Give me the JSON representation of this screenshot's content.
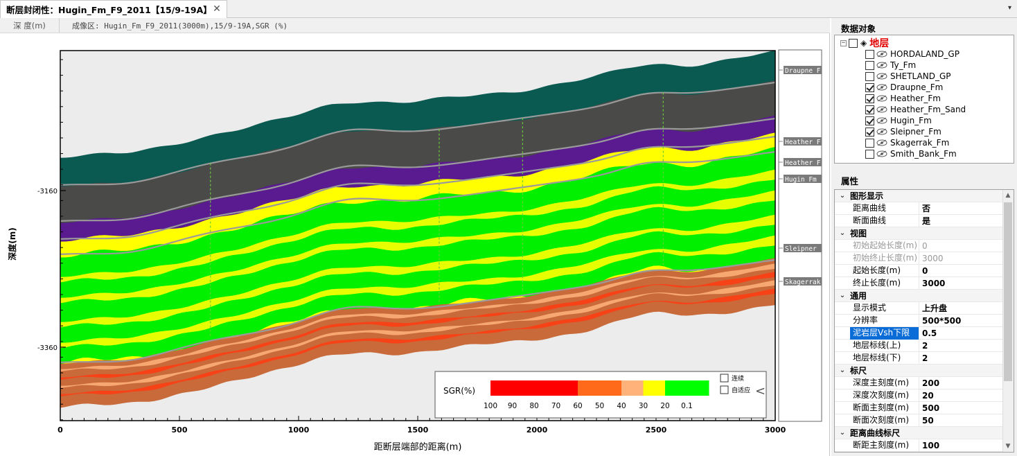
{
  "tab": {
    "title": "断层封闭性：Hugin_Fm_F9_2011【15/9-19A】",
    "close": "✕",
    "dropdown": "▾"
  },
  "chart": {
    "depth_col": "深 度(m)",
    "section_label": "成像区: Hugin_Fm_F9_2011(3000m),15/9-19A,SGR (%)",
    "ylabel": "深度(m)",
    "xlabel": "距断层端部的距离(m)",
    "x_ticks": [
      "0",
      "500",
      "1000",
      "1500",
      "2000",
      "2500",
      "3000"
    ],
    "y_ticks": [
      "-3160",
      "-3360"
    ],
    "horizon_labels": [
      "Draupne_F",
      "Heather_F",
      "Heather_F",
      "Hugin_Fm",
      "Sleipner_",
      "Skagerrak"
    ],
    "legend": {
      "title": "SGR(%)",
      "ticks": [
        "100",
        "90",
        "80",
        "70",
        "60",
        "50",
        "40",
        "30",
        "20",
        "0.1"
      ],
      "colors": [
        "#ff0000",
        "#ff0000",
        "#ff0000",
        "#ff0000",
        "#ff6a1a",
        "#ff6a1a",
        "#ffb27a",
        "#ffff00",
        "#00ff00",
        "#00ff00"
      ],
      "check1": "连续",
      "check2": "自适应",
      "collapse": "<"
    }
  },
  "chart_data": {
    "type": "heatmap",
    "x_axis": {
      "label": "距断层端部的距离(m)",
      "range": [
        0,
        3000
      ],
      "major": 500
    },
    "y_axis": {
      "label": "深度(m)",
      "ticks": [
        -3160,
        -3360
      ]
    },
    "color_scale": {
      "label": "SGR(%)",
      "stops": [
        100,
        90,
        80,
        70,
        60,
        50,
        40,
        30,
        20,
        0.1
      ]
    }
  },
  "tree": {
    "title": "数据对象",
    "root": "地层",
    "items": [
      {
        "label": "HORDALAND_GP",
        "checked": false
      },
      {
        "label": "Ty_Fm",
        "checked": false
      },
      {
        "label": "SHETLAND_GP",
        "checked": false
      },
      {
        "label": "Draupne_Fm",
        "checked": true
      },
      {
        "label": "Heather_Fm",
        "checked": true
      },
      {
        "label": "Heather_Fm_Sand",
        "checked": true
      },
      {
        "label": "Hugin_Fm",
        "checked": true
      },
      {
        "label": "Sleipner_Fm",
        "checked": true
      },
      {
        "label": "Skagerrak_Fm",
        "checked": false
      },
      {
        "label": "Smith_Bank_Fm",
        "checked": false
      }
    ]
  },
  "props": {
    "title": "属性",
    "rows": [
      {
        "cat": true,
        "name": "图形显示"
      },
      {
        "name": "距离曲线",
        "value": "否"
      },
      {
        "name": "断面曲线",
        "value": "是"
      },
      {
        "cat": true,
        "name": "视图"
      },
      {
        "name": "初始起始长度(m)",
        "value": "0",
        "ro": true
      },
      {
        "name": "初始终止长度(m)",
        "value": "3000",
        "ro": true
      },
      {
        "name": "起始长度(m)",
        "value": "0"
      },
      {
        "name": "终止长度(m)",
        "value": "3000"
      },
      {
        "cat": true,
        "name": "通用"
      },
      {
        "name": "显示模式",
        "value": "上升盘"
      },
      {
        "name": "分辨率",
        "value": "500*500"
      },
      {
        "name": "泥岩层Vsh下限",
        "value": "0.5",
        "sel": true
      },
      {
        "name": "地层标线(上)",
        "value": "2"
      },
      {
        "name": "地层标线(下)",
        "value": "2"
      },
      {
        "cat": true,
        "name": "标尺"
      },
      {
        "name": "深度主刻度(m)",
        "value": "200"
      },
      {
        "name": "深度次刻度(m)",
        "value": "20"
      },
      {
        "name": "断面主刻度(m)",
        "value": "500"
      },
      {
        "name": "断面次刻度(m)",
        "value": "50"
      },
      {
        "cat": true,
        "name": "距离曲线标尺"
      },
      {
        "name": "断距主刻度(m)",
        "value": "100"
      }
    ]
  }
}
